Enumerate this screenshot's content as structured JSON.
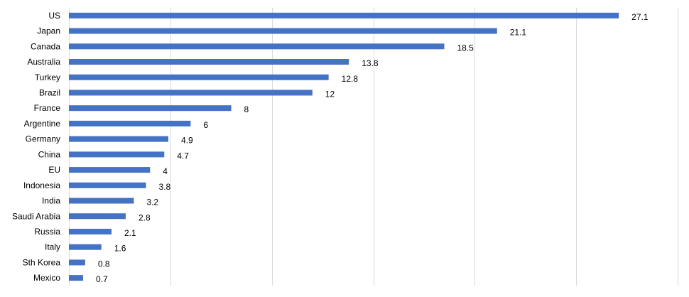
{
  "chart_data": {
    "type": "bar",
    "orientation": "horizontal",
    "categories": [
      "US",
      "Japan",
      "Canada",
      "Australia",
      "Turkey",
      "Brazil",
      "France",
      "Argentine",
      "Germany",
      "China",
      "EU",
      "Indonesia",
      "India",
      "Saudi Arabia",
      "Russia",
      "Italy",
      "Sth Korea",
      "Mexico"
    ],
    "values": [
      27.1,
      21.1,
      18.5,
      13.8,
      12.8,
      12,
      8,
      6,
      4.9,
      4.7,
      4,
      3.8,
      3.2,
      2.8,
      2.1,
      1.6,
      0.8,
      0.7
    ],
    "value_labels": [
      "27.1",
      "21.1",
      "18.5",
      "13.8",
      "12.8",
      "12",
      "8",
      "6",
      "4.9",
      "4.7",
      "4",
      "3.8",
      "3.2",
      "2.8",
      "2.1",
      "1.6",
      "0.8",
      "0.7"
    ],
    "title": "",
    "xlabel": "",
    "ylabel": "",
    "xlim": [
      0,
      30
    ],
    "x_tick_step": 5,
    "grid": "vertical",
    "legend": "none",
    "bar_color": "#4472c4",
    "grid_color": "#d9d9d9"
  }
}
